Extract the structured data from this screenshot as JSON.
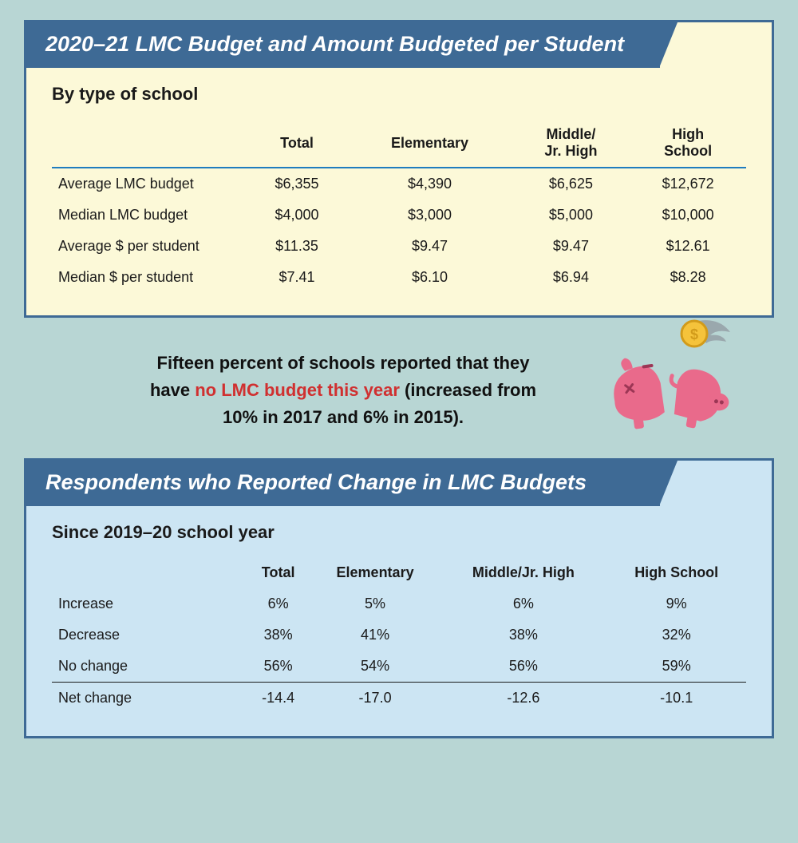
{
  "card1": {
    "title": "2020–21 LMC Budget and Amount Budgeted per Student",
    "subtitle": "By type of school",
    "columns": [
      "Total",
      "Elementary",
      "Middle/\nJr. High",
      "High\nSchool"
    ],
    "rows": [
      {
        "label": "Average LMC budget",
        "cells": [
          "$6,355",
          "$4,390",
          "$6,625",
          "$12,672"
        ]
      },
      {
        "label": "Median LMC budget",
        "cells": [
          "$4,000",
          "$3,000",
          "$5,000",
          "$10,000"
        ]
      },
      {
        "label": "Average $ per student",
        "cells": [
          "$11.35",
          "$9.47",
          "$9.47",
          "$12.61"
        ]
      },
      {
        "label": "Median $ per student",
        "cells": [
          "$7.41",
          "$6.10",
          "$6.94",
          "$8.28"
        ]
      }
    ],
    "header_bg": "#3e6a95",
    "card_bg": "#fcf9d8",
    "divider_color": "#1f7dbf"
  },
  "callout": {
    "line1_before": "Fifteen percent of schools reported that they",
    "line2_before": "have ",
    "emph": "no LMC budget this year",
    "line2_after": " (increased from",
    "line3": "10% in 2017 and 6% in 2015).",
    "emph_color": "#d03030",
    "piggy_color": "#e96a8b",
    "coin_color": "#f5c33b",
    "wing_color": "#9aa8ad"
  },
  "card2": {
    "title": "Respondents who Reported Change in LMC Budgets",
    "subtitle": "Since 2019–20 school year",
    "columns": [
      "Total",
      "Elementary",
      "Middle/Jr. High",
      "High School"
    ],
    "rows": [
      {
        "label": "Increase",
        "cells": [
          "6%",
          "5%",
          "6%",
          "9%"
        ]
      },
      {
        "label": "Decrease",
        "cells": [
          "38%",
          "41%",
          "38%",
          "32%"
        ]
      },
      {
        "label": "No change",
        "cells": [
          "56%",
          "54%",
          "56%",
          "59%"
        ]
      }
    ],
    "footer_row": {
      "label": "Net change",
      "cells": [
        "-14.4",
        "-17.0",
        "-12.6",
        "-10.1"
      ]
    },
    "header_bg": "#3e6a95",
    "card_bg": "#cce5f3"
  },
  "page_bg": "#b8d6d4"
}
